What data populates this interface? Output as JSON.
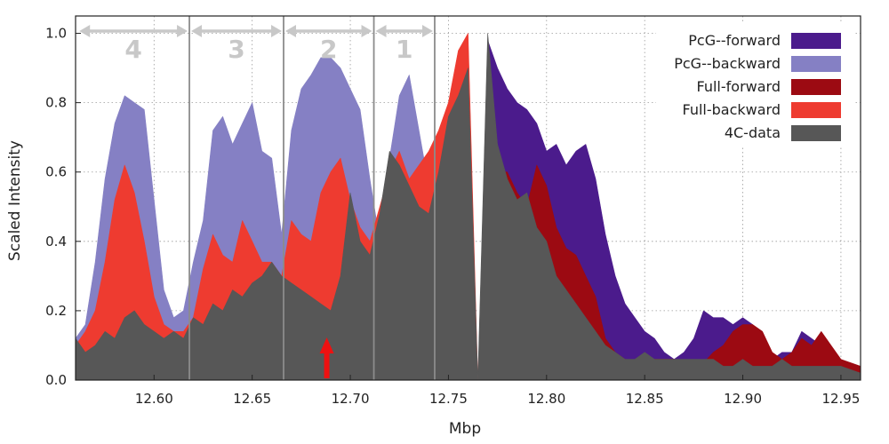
{
  "chart_data": {
    "type": "area",
    "xlabel": "Mbp",
    "ylabel": "Scaled Intensity",
    "xlim": [
      12.56,
      12.96
    ],
    "ylim": [
      0.0,
      1.05
    ],
    "x_ticks": [
      "12.60",
      "12.65",
      "12.70",
      "12.75",
      "12.80",
      "12.85",
      "12.90",
      "12.95"
    ],
    "x_tick_values": [
      12.6,
      12.65,
      12.7,
      12.75,
      12.8,
      12.85,
      12.9,
      12.95
    ],
    "y_ticks": [
      "0.0",
      "0.2",
      "0.4",
      "0.6",
      "0.8",
      "1.0"
    ],
    "y_tick_values": [
      0.0,
      0.2,
      0.4,
      0.6,
      0.8,
      1.0
    ],
    "grid": true,
    "legend_position": "top-right",
    "colors": {
      "pcg_forward": "#4b1b8c",
      "pcg_backward": "#8580c4",
      "full_forward": "#9c0a12",
      "full_backward": "#ee3b30",
      "data_4c": "#575757",
      "region_marker": "#c8c8c8",
      "region_divider": "#8c8c8c",
      "viewpoint_arrow": "#ee1111"
    },
    "series": [
      {
        "name": "PcG--forward",
        "key": "pcg_forward",
        "x": [
          12.77,
          12.775,
          12.78,
          12.785,
          12.79,
          12.795,
          12.8,
          12.805,
          12.81,
          12.815,
          12.82,
          12.825,
          12.83,
          12.835,
          12.84,
          12.845,
          12.85,
          12.855,
          12.86,
          12.865,
          12.87,
          12.875,
          12.88,
          12.885,
          12.89,
          12.895,
          12.9,
          12.905,
          12.91,
          12.915,
          12.92,
          12.925,
          12.93,
          12.935,
          12.94,
          12.945,
          12.95,
          12.955,
          12.96
        ],
        "y": [
          0.98,
          0.9,
          0.84,
          0.8,
          0.78,
          0.74,
          0.66,
          0.68,
          0.62,
          0.66,
          0.68,
          0.58,
          0.42,
          0.3,
          0.22,
          0.18,
          0.14,
          0.12,
          0.08,
          0.06,
          0.08,
          0.12,
          0.2,
          0.18,
          0.18,
          0.16,
          0.18,
          0.16,
          0.1,
          0.06,
          0.08,
          0.08,
          0.14,
          0.12,
          0.1,
          0.08,
          0.06,
          0.04,
          0.03
        ]
      },
      {
        "name": "PcG--backward",
        "key": "pcg_backward",
        "x": [
          12.56,
          12.565,
          12.57,
          12.575,
          12.58,
          12.585,
          12.59,
          12.595,
          12.6,
          12.605,
          12.61,
          12.615,
          12.62,
          12.625,
          12.63,
          12.635,
          12.64,
          12.645,
          12.65,
          12.655,
          12.66,
          12.665,
          12.67,
          12.675,
          12.68,
          12.685,
          12.69,
          12.695,
          12.7,
          12.705,
          12.71,
          12.715,
          12.72,
          12.725,
          12.73,
          12.735,
          12.74,
          12.745,
          12.75
        ],
        "y": [
          0.12,
          0.16,
          0.34,
          0.58,
          0.74,
          0.82,
          0.8,
          0.78,
          0.52,
          0.26,
          0.18,
          0.2,
          0.34,
          0.46,
          0.72,
          0.76,
          0.68,
          0.74,
          0.8,
          0.66,
          0.64,
          0.42,
          0.72,
          0.84,
          0.88,
          0.93,
          0.93,
          0.9,
          0.84,
          0.78,
          0.58,
          0.4,
          0.64,
          0.82,
          0.88,
          0.72,
          0.56,
          0.48,
          0.34
        ]
      },
      {
        "name": "Full-forward",
        "key": "full_forward",
        "x": [
          12.77,
          12.775,
          12.78,
          12.785,
          12.79,
          12.795,
          12.8,
          12.805,
          12.81,
          12.815,
          12.82,
          12.825,
          12.83,
          12.835,
          12.84,
          12.845,
          12.85,
          12.855,
          12.86,
          12.865,
          12.87,
          12.875,
          12.88,
          12.885,
          12.89,
          12.895,
          12.9,
          12.905,
          12.91,
          12.915,
          12.92,
          12.925,
          12.93,
          12.935,
          12.94,
          12.945,
          12.95,
          12.955,
          12.96
        ],
        "y": [
          0.55,
          0.6,
          0.6,
          0.54,
          0.5,
          0.62,
          0.56,
          0.44,
          0.38,
          0.36,
          0.3,
          0.24,
          0.12,
          0.08,
          0.06,
          0.05,
          0.05,
          0.06,
          0.06,
          0.06,
          0.05,
          0.05,
          0.05,
          0.08,
          0.1,
          0.14,
          0.16,
          0.16,
          0.14,
          0.08,
          0.06,
          0.08,
          0.12,
          0.1,
          0.14,
          0.1,
          0.06,
          0.05,
          0.04
        ]
      },
      {
        "name": "Full-backward",
        "key": "full_backward",
        "x": [
          12.56,
          12.565,
          12.57,
          12.575,
          12.58,
          12.585,
          12.59,
          12.595,
          12.6,
          12.605,
          12.61,
          12.615,
          12.62,
          12.625,
          12.63,
          12.635,
          12.64,
          12.645,
          12.65,
          12.655,
          12.66,
          12.665,
          12.67,
          12.675,
          12.68,
          12.685,
          12.69,
          12.695,
          12.7,
          12.705,
          12.71,
          12.715,
          12.72,
          12.725,
          12.73,
          12.735,
          12.74,
          12.745,
          12.75,
          12.755,
          12.76,
          12.765
        ],
        "y": [
          0.1,
          0.14,
          0.2,
          0.34,
          0.52,
          0.62,
          0.54,
          0.4,
          0.24,
          0.16,
          0.14,
          0.14,
          0.18,
          0.32,
          0.42,
          0.36,
          0.34,
          0.46,
          0.4,
          0.34,
          0.34,
          0.3,
          0.46,
          0.42,
          0.4,
          0.54,
          0.6,
          0.64,
          0.52,
          0.44,
          0.4,
          0.5,
          0.6,
          0.66,
          0.58,
          0.62,
          0.66,
          0.72,
          0.8,
          0.95,
          1.0,
          0.0
        ]
      },
      {
        "name": "4C-data",
        "key": "data_4c",
        "x": [
          12.56,
          12.565,
          12.57,
          12.575,
          12.58,
          12.585,
          12.59,
          12.595,
          12.6,
          12.605,
          12.61,
          12.615,
          12.62,
          12.625,
          12.63,
          12.635,
          12.64,
          12.645,
          12.65,
          12.655,
          12.66,
          12.665,
          12.67,
          12.675,
          12.68,
          12.685,
          12.69,
          12.695,
          12.7,
          12.705,
          12.71,
          12.715,
          12.72,
          12.725,
          12.73,
          12.735,
          12.74,
          12.745,
          12.75,
          12.755,
          12.76,
          12.765,
          12.77,
          12.775,
          12.78,
          12.785,
          12.79,
          12.795,
          12.8,
          12.805,
          12.81,
          12.815,
          12.82,
          12.825,
          12.83,
          12.835,
          12.84,
          12.845,
          12.85,
          12.855,
          12.86,
          12.865,
          12.87,
          12.875,
          12.88,
          12.885,
          12.89,
          12.895,
          12.9,
          12.905,
          12.91,
          12.915,
          12.92,
          12.925,
          12.93,
          12.935,
          12.94,
          12.945,
          12.95,
          12.955,
          12.96
        ],
        "y": [
          0.12,
          0.08,
          0.1,
          0.14,
          0.12,
          0.18,
          0.2,
          0.16,
          0.14,
          0.12,
          0.14,
          0.12,
          0.18,
          0.16,
          0.22,
          0.2,
          0.26,
          0.24,
          0.28,
          0.3,
          0.34,
          0.3,
          0.28,
          0.26,
          0.24,
          0.22,
          0.2,
          0.3,
          0.54,
          0.4,
          0.36,
          0.48,
          0.66,
          0.62,
          0.56,
          0.5,
          0.48,
          0.6,
          0.76,
          0.82,
          0.9,
          0.0,
          1.0,
          0.68,
          0.58,
          0.52,
          0.54,
          0.44,
          0.4,
          0.3,
          0.26,
          0.22,
          0.18,
          0.14,
          0.1,
          0.08,
          0.06,
          0.06,
          0.08,
          0.06,
          0.06,
          0.06,
          0.06,
          0.06,
          0.06,
          0.06,
          0.04,
          0.04,
          0.06,
          0.04,
          0.04,
          0.04,
          0.06,
          0.04,
          0.04,
          0.04,
          0.04,
          0.04,
          0.04,
          0.03,
          0.02
        ]
      }
    ],
    "region_dividers_x": [
      12.618,
      12.666,
      12.712,
      12.743
    ],
    "regions": [
      {
        "label": "4",
        "x_start": 12.561,
        "x_end": 12.618
      },
      {
        "label": "3",
        "x_start": 12.618,
        "x_end": 12.666
      },
      {
        "label": "2",
        "x_start": 12.666,
        "x_end": 12.712
      },
      {
        "label": "1",
        "x_start": 12.712,
        "x_end": 12.743
      }
    ],
    "viewpoint_arrow_x": 12.688
  }
}
